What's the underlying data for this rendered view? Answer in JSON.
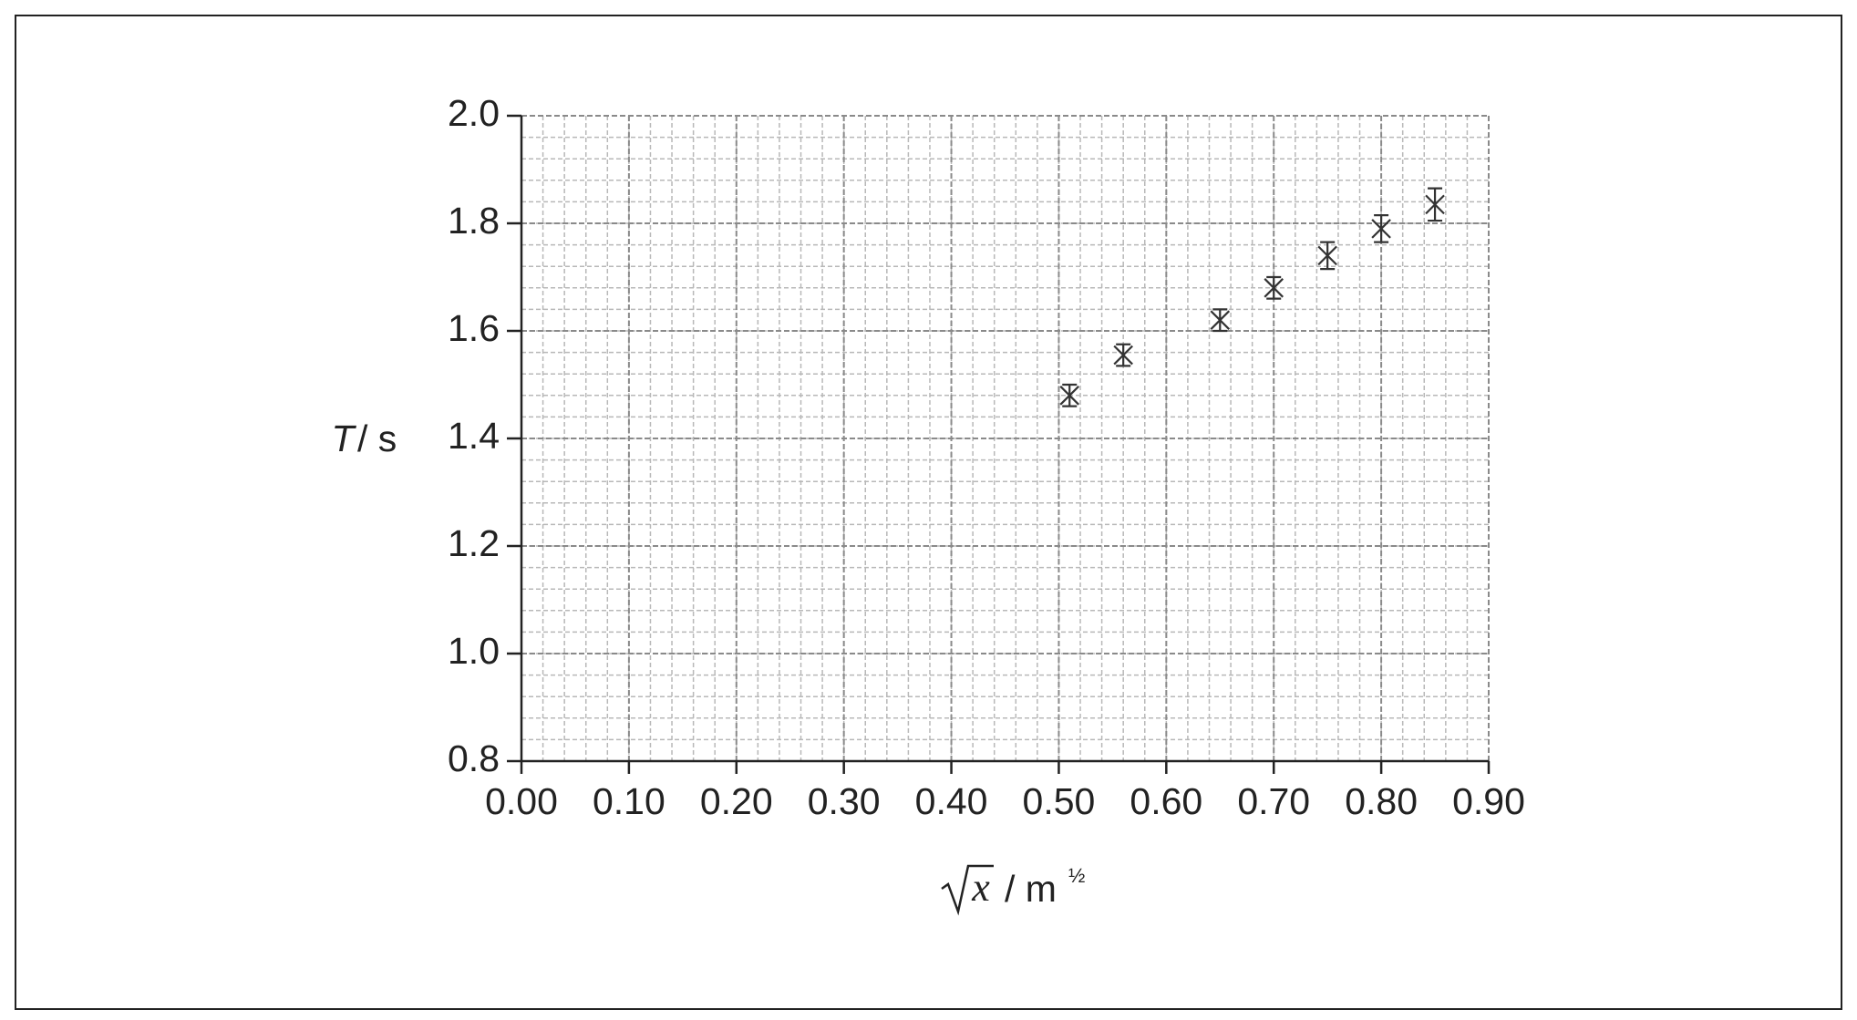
{
  "chart_data": {
    "type": "scatter",
    "x_label": {
      "symbol": "x",
      "unit": "/ m",
      "exponent": "½"
    },
    "y_label": {
      "symbol": "T",
      "unit": "/ s"
    },
    "x": [
      0.51,
      0.56,
      0.65,
      0.7,
      0.75,
      0.8,
      0.85
    ],
    "values": [
      1.48,
      1.555,
      1.62,
      1.68,
      1.74,
      1.79,
      1.835
    ],
    "errors": [
      0.02,
      0.02,
      0.02,
      0.02,
      0.025,
      0.025,
      0.03
    ],
    "color": "#333333",
    "xlim": [
      0,
      0.9
    ],
    "xticks": [
      {
        "value": 0,
        "label": "0.00"
      },
      {
        "value": 0.1,
        "label": "0.10"
      },
      {
        "value": 0.2,
        "label": "0.20"
      },
      {
        "value": 0.3,
        "label": "0.30"
      },
      {
        "value": 0.4,
        "label": "0.40"
      },
      {
        "value": 0.5,
        "label": "0.50"
      },
      {
        "value": 0.6,
        "label": "0.60"
      },
      {
        "value": 0.7,
        "label": "0.70"
      },
      {
        "value": 0.8,
        "label": "0.80"
      },
      {
        "value": 0.9,
        "label": "0.90"
      }
    ],
    "ylim": [
      0.8,
      2.0
    ],
    "yticks": [
      0.8,
      {
        "value": 1.0,
        "label": "1.0"
      },
      1.2,
      1.4,
      1.6,
      1.8,
      {
        "value": 2.0,
        "label": "2.0"
      }
    ],
    "grid": true
  }
}
